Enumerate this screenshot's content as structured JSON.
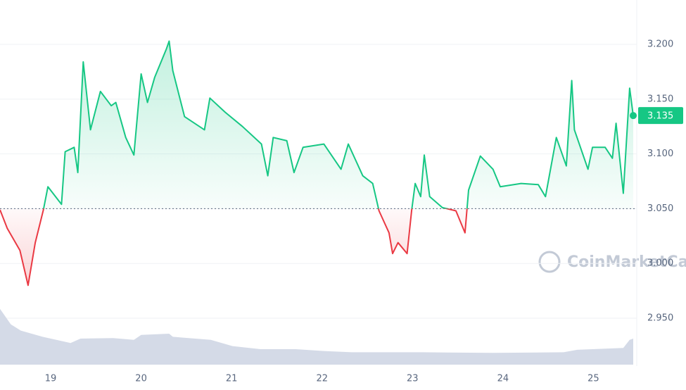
{
  "chart_data": {
    "type": "line",
    "x": [
      18.44,
      18.52,
      18.66,
      18.75,
      18.83,
      18.92,
      18.97,
      19.12,
      19.16,
      19.26,
      19.3,
      19.36,
      19.44,
      19.55,
      19.67,
      19.72,
      19.83,
      19.92,
      20.0,
      20.07,
      20.15,
      20.28,
      20.31,
      20.35,
      20.48,
      20.7,
      20.76,
      20.93,
      21.12,
      21.33,
      21.4,
      21.46,
      21.61,
      21.69,
      21.79,
      22.02,
      22.21,
      22.29,
      22.45,
      22.56,
      22.63,
      22.74,
      22.78,
      22.84,
      22.94,
      22.99,
      23.03,
      23.09,
      23.13,
      23.19,
      23.33,
      23.48,
      23.58,
      23.62,
      23.75,
      23.89,
      23.97,
      24.2,
      24.39,
      24.47,
      24.59,
      24.7,
      24.76,
      24.79,
      24.94,
      24.99,
      25.13,
      25.21,
      25.25,
      25.33,
      25.4,
      25.44
    ],
    "values": [
      3.049,
      3.032,
      3.012,
      2.98,
      3.019,
      3.049,
      3.07,
      3.054,
      3.102,
      3.106,
      3.083,
      3.184,
      3.122,
      3.157,
      3.144,
      3.147,
      3.115,
      3.099,
      3.173,
      3.147,
      3.17,
      3.196,
      3.203,
      3.176,
      3.134,
      3.122,
      3.151,
      3.138,
      3.125,
      3.109,
      3.08,
      3.115,
      3.112,
      3.083,
      3.106,
      3.109,
      3.086,
      3.109,
      3.08,
      3.073,
      3.048,
      3.028,
      3.009,
      3.019,
      3.009,
      3.048,
      3.073,
      3.061,
      3.099,
      3.061,
      3.051,
      3.048,
      3.028,
      3.067,
      3.098,
      3.086,
      3.07,
      3.073,
      3.072,
      3.061,
      3.115,
      3.089,
      3.167,
      3.122,
      3.086,
      3.106,
      3.106,
      3.096,
      3.128,
      3.064,
      3.16,
      3.135
    ],
    "baseline": 3.05,
    "up_color": "#16c784",
    "down_color": "#ea3943",
    "last_price": 3.135,
    "xlim": [
      18.44,
      25.44
    ],
    "xticks": [
      19,
      20,
      21,
      22,
      23,
      24,
      25
    ],
    "ylim": [
      2.9076,
      3.2405
    ],
    "yticks": [
      {
        "value": 2.95,
        "label": "2.950"
      },
      {
        "value": 3.0,
        "label": "3.000"
      },
      {
        "value": 3.05,
        "label": "3.050"
      },
      {
        "value": 3.1,
        "label": "3.100"
      },
      {
        "value": 3.15,
        "label": "3.150"
      },
      {
        "value": 3.2,
        "label": "3.200"
      }
    ],
    "grid": true,
    "volume": {
      "color": "#cfd6e4",
      "x": [
        18.44,
        18.56,
        18.67,
        18.91,
        19.22,
        19.33,
        19.69,
        19.92,
        20.0,
        20.31,
        20.35,
        20.77,
        21.01,
        21.32,
        21.71,
        22.02,
        22.33,
        23.11,
        23.89,
        24.67,
        24.82,
        25.33,
        25.4,
        25.44
      ],
      "values": [
        90,
        65,
        55,
        45,
        35,
        42,
        43,
        40,
        48,
        50,
        45,
        40,
        30,
        25,
        25,
        22,
        20,
        20,
        19,
        20,
        24,
        27,
        40,
        42
      ]
    },
    "y2lim": [
      0,
      100
    ],
    "watermark": "CoinMarketCap"
  }
}
